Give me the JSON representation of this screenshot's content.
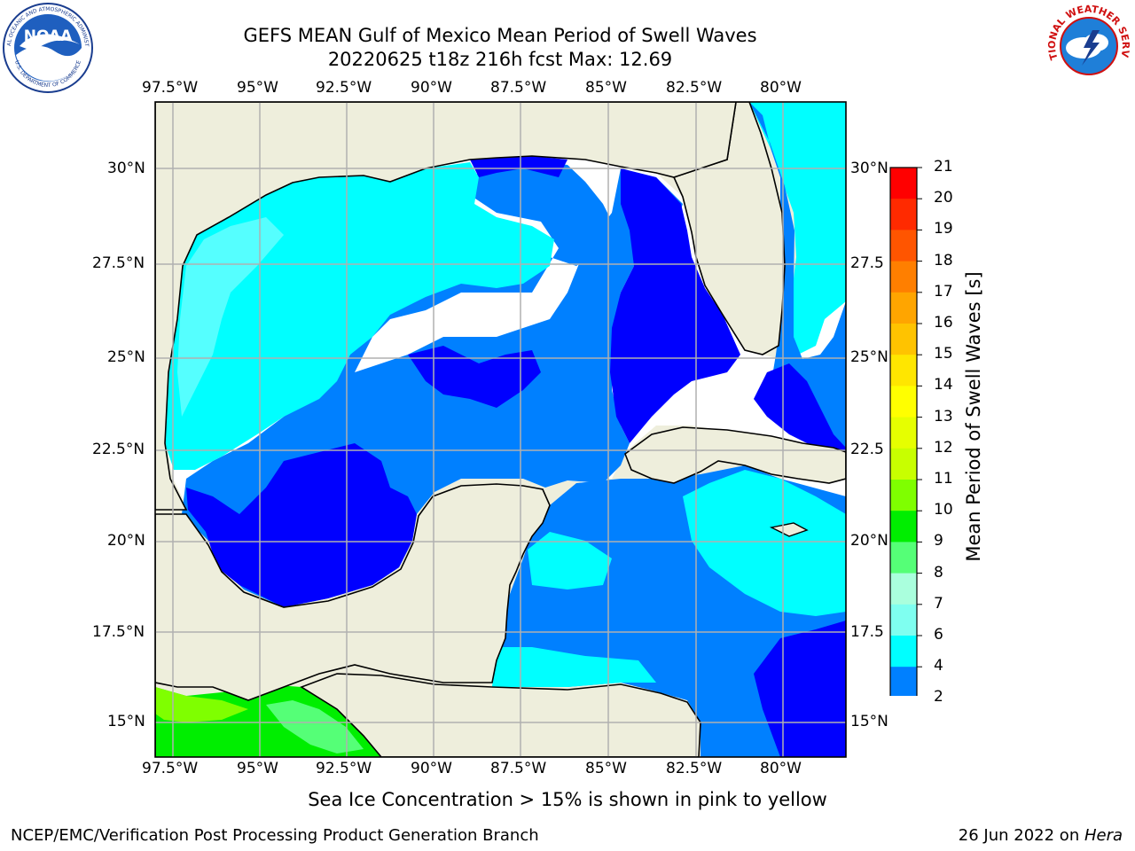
{
  "title": {
    "line1": "GEFS MEAN Gulf of Mexico Mean Period of Swell Waves",
    "line2": "20220625 t18z 216h fcst   Max: 12.69"
  },
  "logos": {
    "left": "NOAA",
    "left_ring_top": "NATIONAL OCEANIC AND ATMOSPHERIC ADMINISTRATION",
    "left_ring_bottom": "U.S. DEPARTMENT OF COMMERCE",
    "right_ring": "NATIONAL WEATHER SERVICE"
  },
  "map": {
    "lon_labels": [
      "97.5°W",
      "95°W",
      "92.5°W",
      "90°W",
      "87.5°W",
      "85°W",
      "82.5°W",
      "80°W"
    ],
    "lat_labels_left": [
      "30°N",
      "27.5°N",
      "25°N",
      "22.5°N",
      "20°N",
      "17.5°N",
      "15°N"
    ],
    "lat_labels_right": [
      "30°N",
      "27.5",
      "25°N",
      "22.5",
      "20°N",
      "17.5",
      "15°N"
    ],
    "extent": {
      "lon_min": -98,
      "lon_max": -78.2,
      "lat_min": 14.0,
      "lat_max": 31.7
    },
    "colors": {
      "land": "#eeeedc",
      "frame": "#000000",
      "grid": "#b0b0b0"
    }
  },
  "colorbar": {
    "label": "Mean Period of Swell Waves [s]",
    "ticks": [
      "21",
      "20",
      "19",
      "18",
      "17",
      "16",
      "15",
      "14",
      "13",
      "12",
      "11",
      "10",
      "9",
      "8",
      "7",
      "6",
      "4",
      "2"
    ],
    "colors": [
      "#ff0000",
      "#ff2a00",
      "#ff5500",
      "#ff7f00",
      "#ffa500",
      "#ffc300",
      "#ffe600",
      "#ffff00",
      "#e6ff00",
      "#c8ff00",
      "#7fff00",
      "#00ee00",
      "#55ff77",
      "#aaffdd",
      "#7ffff0",
      "#00ffff",
      "#0080ff",
      "#0000ff"
    ]
  },
  "note": "Sea Ice Concentration > 15% is shown in pink to yellow",
  "footer": {
    "left": "NCEP/EMC/Verification Post Processing Product Generation Branch",
    "right_date": "26 Jun 2022 on ",
    "right_host": "Hera"
  }
}
